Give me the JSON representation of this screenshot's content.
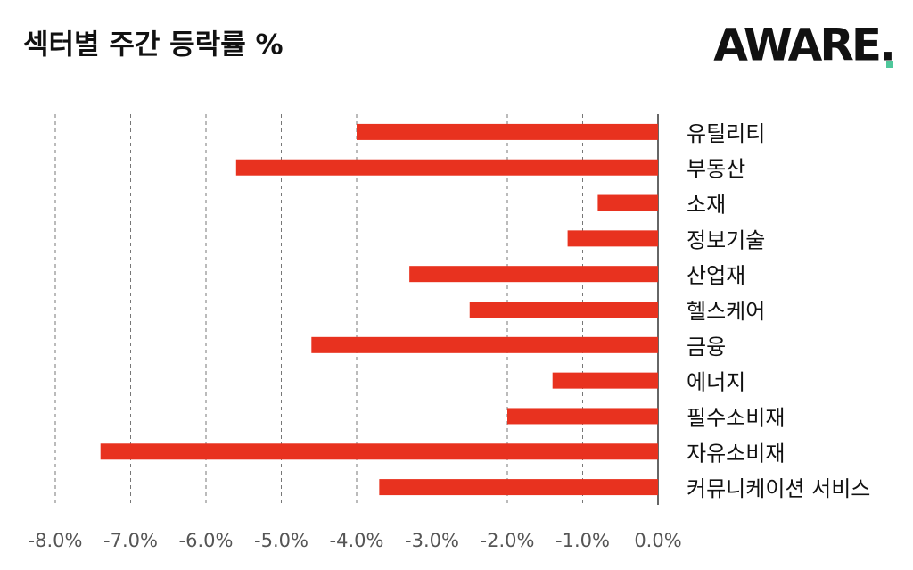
{
  "chart_data": {
    "type": "hbar",
    "title": "섹터별 주간 등락률 %",
    "logo": "AWARE.",
    "categories": [
      "유틸리티",
      "부동산",
      "소재",
      "정보기술",
      "산업재",
      "헬스케어",
      "금융",
      "에너지",
      "필수소비재",
      "자유소비재",
      "커뮤니케이션 서비스"
    ],
    "values": [
      -4.0,
      -5.6,
      -0.8,
      -1.2,
      -3.3,
      -2.5,
      -4.6,
      -1.4,
      -2.0,
      -7.4,
      -3.7
    ],
    "color": "#e8321f",
    "xlim": [
      -8,
      0
    ],
    "xticks": [
      {
        "value": -8,
        "label": "-8.0%"
      },
      {
        "value": -7,
        "label": "-7.0%"
      },
      {
        "value": -6,
        "label": "-6.0%"
      },
      {
        "value": -5,
        "label": "-5.0%"
      },
      {
        "value": -4,
        "label": "-4.0%"
      },
      {
        "value": -3,
        "label": "-3.0%"
      },
      {
        "value": -2,
        "label": "-2.0%"
      },
      {
        "value": -1,
        "label": "-1.0%"
      },
      {
        "value": 0,
        "label": "0.0%"
      }
    ],
    "grid": true
  }
}
